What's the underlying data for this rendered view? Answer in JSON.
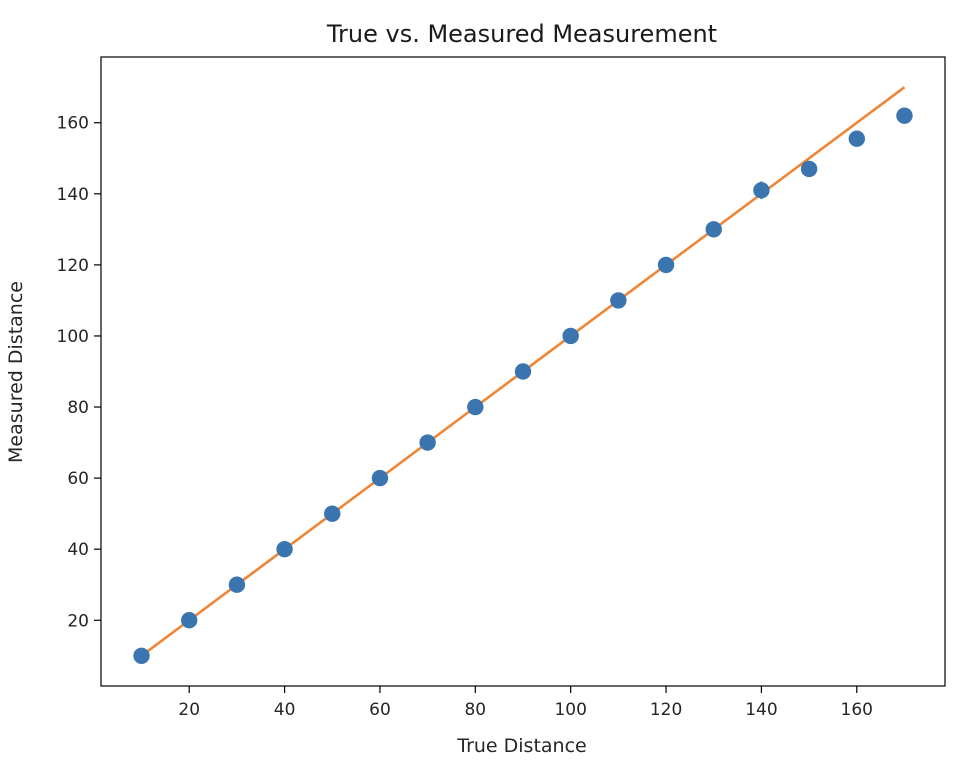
{
  "chart_data": {
    "type": "scatter",
    "title": "True vs. Measured Measurement",
    "xlabel": "True Distance",
    "ylabel": "Measured Distance",
    "xlim": [
      1.5,
      178.5
    ],
    "ylim": [
      1.5,
      178.5
    ],
    "x_ticks": [
      20,
      40,
      60,
      80,
      100,
      120,
      140,
      160
    ],
    "y_ticks": [
      20,
      40,
      60,
      80,
      100,
      120,
      140,
      160
    ],
    "grid": false,
    "series": [
      {
        "type": "scatter",
        "color": "#3b75af",
        "x": [
          10,
          20,
          30,
          40,
          50,
          60,
          70,
          80,
          90,
          100,
          110,
          120,
          130,
          140,
          150,
          160,
          170
        ],
        "y": [
          10,
          20,
          30,
          40,
          50,
          60,
          70,
          80,
          90,
          100,
          110,
          120,
          130,
          141,
          147,
          155.5,
          162
        ],
        "yerr": [
          0,
          0,
          0,
          0,
          0,
          0,
          0,
          0,
          0,
          0,
          0,
          0,
          0,
          2.5,
          0,
          0,
          0
        ]
      },
      {
        "type": "line",
        "color": "#ef8636",
        "x": [
          10,
          170
        ],
        "y": [
          10,
          170
        ]
      }
    ]
  }
}
